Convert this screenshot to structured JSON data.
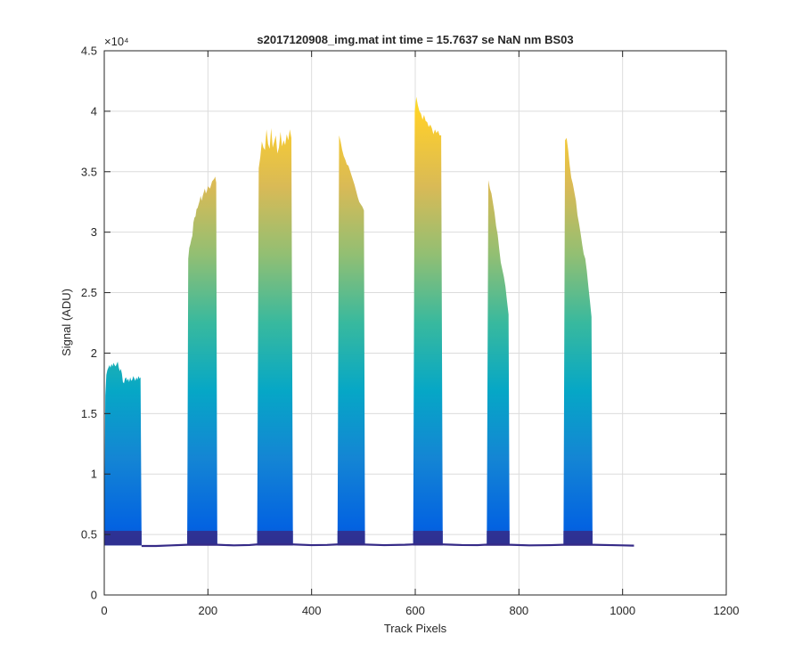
{
  "chart_data": {
    "type": "area",
    "title": "s2017120908_img.mat int time = 15.7637 se  NaN nm BS03",
    "xlabel": "Track Pixels",
    "ylabel": "Signal (ADU)",
    "xlim": [
      0,
      1200
    ],
    "ylim": [
      0,
      45000
    ],
    "x_ticks": [
      0,
      200,
      400,
      600,
      800,
      1000,
      1200
    ],
    "x_tick_labels": [
      "0",
      "200",
      "400",
      "600",
      "800",
      "1000",
      "1200"
    ],
    "y_ticks": [
      0,
      5000,
      10000,
      15000,
      20000,
      25000,
      30000,
      35000,
      40000,
      45000
    ],
    "y_tick_labels": [
      "0",
      "0.5",
      "1",
      "1.5",
      "2",
      "2.5",
      "3",
      "3.5",
      "4",
      "4.5"
    ],
    "y_exponent_label": "×10⁴",
    "grid": true,
    "colormap": [
      "#352a87",
      "#0363e1",
      "#1485d4",
      "#06a7c6",
      "#38b99e",
      "#92bf73",
      "#d9ba56",
      "#fcce2e",
      "#f9fb0e"
    ],
    "baseline": 4100,
    "series": [
      {
        "x": [
          0,
          2,
          4,
          6,
          8,
          10,
          12,
          14,
          16,
          18,
          20,
          22,
          24,
          26,
          28,
          30,
          32,
          34,
          36,
          38,
          40,
          42,
          44,
          46,
          48,
          50,
          52,
          54,
          56,
          58,
          60,
          62,
          64,
          66,
          68,
          70,
          72
        ],
        "y": [
          4100,
          16500,
          18200,
          18600,
          18800,
          19000,
          18800,
          19100,
          18900,
          19200,
          19000,
          18900,
          19100,
          19300,
          18800,
          18500,
          18700,
          18300,
          17600,
          17500,
          17900,
          18000,
          17700,
          17900,
          17600,
          18000,
          17700,
          17800,
          18100,
          17900,
          17700,
          18000,
          17800,
          18100,
          17900,
          18000,
          4100
        ]
      },
      {
        "x": [
          160,
          162,
          164,
          166,
          168,
          170,
          172,
          174,
          176,
          178,
          180,
          182,
          184,
          186,
          188,
          190,
          192,
          194,
          196,
          198,
          200,
          202,
          204,
          206,
          208,
          210,
          212,
          214,
          216,
          218
        ],
        "y": [
          4100,
          27800,
          28700,
          29000,
          29400,
          29700,
          30800,
          31200,
          31300,
          31900,
          32000,
          32300,
          32600,
          33000,
          32600,
          33000,
          33300,
          33600,
          33200,
          33400,
          33800,
          33700,
          33600,
          33900,
          34200,
          34300,
          34400,
          34600,
          34100,
          4100
        ]
      },
      {
        "x": [
          295,
          298,
          301,
          304,
          307,
          310,
          313,
          316,
          319,
          322,
          325,
          328,
          331,
          334,
          337,
          340,
          343,
          346,
          349,
          352,
          355,
          358,
          361,
          364
        ],
        "y": [
          4100,
          35300,
          36200,
          37500,
          37000,
          36800,
          38500,
          37300,
          36900,
          38600,
          37000,
          37500,
          38000,
          36500,
          37000,
          38300,
          37100,
          37600,
          37200,
          38100,
          37600,
          38500,
          37800,
          4100
        ]
      },
      {
        "x": [
          450,
          453,
          456,
          459,
          462,
          465,
          468,
          471,
          474,
          477,
          480,
          483,
          486,
          489,
          492,
          495,
          498,
          501,
          503
        ],
        "y": [
          4100,
          38000,
          37500,
          36800,
          36300,
          36000,
          35600,
          35500,
          35100,
          34700,
          34300,
          33900,
          33400,
          32900,
          32500,
          32300,
          32100,
          31800,
          4100
        ]
      },
      {
        "x": [
          596,
          599,
          602,
          605,
          608,
          611,
          614,
          617,
          620,
          623,
          626,
          629,
          632,
          635,
          638,
          641,
          644,
          647,
          650,
          653
        ],
        "y": [
          4100,
          40000,
          41200,
          40500,
          40000,
          39800,
          39300,
          39700,
          39200,
          39100,
          38700,
          38900,
          38600,
          38100,
          38500,
          38200,
          38400,
          38000,
          38000,
          4100
        ]
      },
      {
        "x": [
          738,
          741,
          744,
          747,
          750,
          753,
          756,
          759,
          762,
          765,
          768,
          771,
          774,
          777,
          780,
          782
        ],
        "y": [
          4100,
          34300,
          33600,
          33200,
          32400,
          31600,
          30500,
          29800,
          28600,
          27500,
          26900,
          26300,
          25500,
          24300,
          23200,
          4100
        ]
      },
      {
        "x": [
          886,
          889,
          892,
          895,
          898,
          901,
          904,
          907,
          910,
          913,
          916,
          919,
          922,
          925,
          928,
          931,
          934,
          937,
          940,
          942
        ],
        "y": [
          4100,
          37600,
          37800,
          36800,
          35500,
          34500,
          34000,
          33300,
          32600,
          31400,
          30700,
          29900,
          29000,
          28200,
          27800,
          26800,
          25500,
          24300,
          23000,
          4100
        ]
      }
    ],
    "baseline_line": {
      "x": [
        72,
        100,
        130,
        160,
        218,
        250,
        280,
        295,
        364,
        400,
        430,
        450,
        503,
        540,
        580,
        596,
        653,
        690,
        720,
        738,
        782,
        820,
        860,
        886,
        942,
        980,
        1000,
        1022
      ],
      "y": [
        4050,
        4050,
        4100,
        4150,
        4150,
        4100,
        4130,
        4180,
        4180,
        4120,
        4140,
        4180,
        4170,
        4120,
        4150,
        4180,
        4180,
        4130,
        4120,
        4160,
        4150,
        4100,
        4120,
        4150,
        4150,
        4120,
        4100,
        4080
      ]
    }
  }
}
